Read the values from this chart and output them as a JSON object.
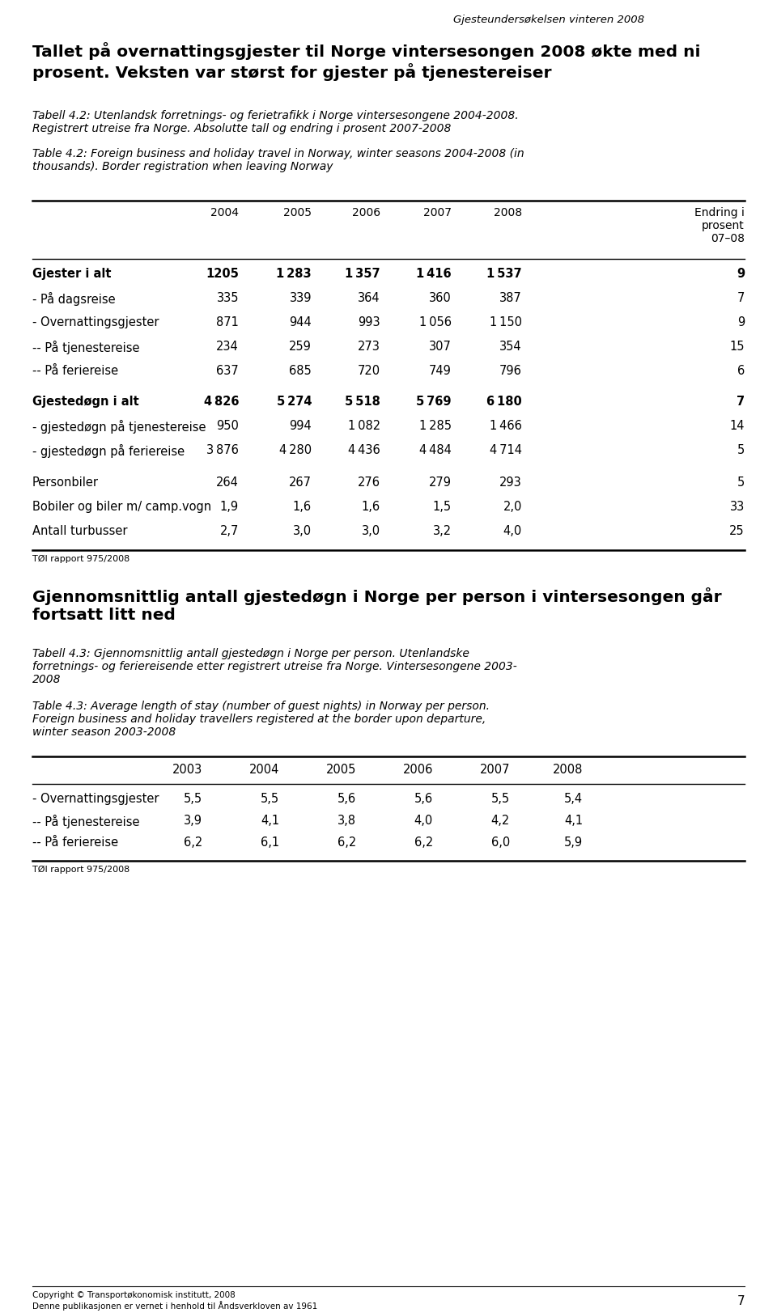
{
  "header_right": "Gjesteundersøkelsen vinteren 2008",
  "section1_title": "Tallet på overnattingsgjester til Norge vintersesongen 2008 økte med ni\nprosent. Veksten var størst for gjester på tjenestereiser",
  "section1_subtitle_no": "Tabell 4.2: Utenlandsk forretnings- og ferietrafikk i Norge vintersesongene 2004-2008.\nRegistrert utreise fra Norge. Absolutte tall og endring i prosent 2007-2008",
  "section1_subtitle_en": "Table 4.2: Foreign business and holiday travel in Norway, winter seasons 2004-2008 (in\nthousands). Border registration when leaving Norway",
  "table1_header": [
    "",
    "2004",
    "2005",
    "2006",
    "2007",
    "2008",
    "Endring i\nprosent\n07–08"
  ],
  "table1_rows": [
    [
      "Gjester i alt",
      "1205",
      "1 283",
      "1 357",
      "1 416",
      "1 537",
      "9"
    ],
    [
      "- På dagsreise",
      "335",
      "339",
      "364",
      "360",
      "387",
      "7"
    ],
    [
      "- Overnattingsgjester",
      "871",
      "944",
      "993",
      "1 056",
      "1 150",
      "9"
    ],
    [
      "-- På tjenestereise",
      "234",
      "259",
      "273",
      "307",
      "354",
      "15"
    ],
    [
      "-- På feriereise",
      "637",
      "685",
      "720",
      "749",
      "796",
      "6"
    ],
    [
      "Gjestedøgn i alt",
      "4 826",
      "5 274",
      "5 518",
      "5 769",
      "6 180",
      "7"
    ],
    [
      "- gjestedøgn på tjenestereise",
      "950",
      "994",
      "1 082",
      "1 285",
      "1 466",
      "14"
    ],
    [
      "- gjestedøgn på feriereise",
      "3 876",
      "4 280",
      "4 436",
      "4 484",
      "4 714",
      "5"
    ],
    [
      "Personbiler",
      "264",
      "267",
      "276",
      "279",
      "293",
      "5"
    ],
    [
      "Bobiler og biler m/ camp.vogn",
      "1,9",
      "1,6",
      "1,6",
      "1,5",
      "2,0",
      "33"
    ],
    [
      "Antall turbusser",
      "2,7",
      "3,0",
      "3,0",
      "3,2",
      "4,0",
      "25"
    ]
  ],
  "table1_bold_rows": [
    0,
    5
  ],
  "table1_source": "TØI rapport 975/2008",
  "section2_title": "Gjennomsnittlig antall gjestedøgn i Norge per person i vintersesongen går\nfortsatt litt ned",
  "section2_subtitle_no": "Tabell 4.3: Gjennomsnittlig antall gjestedøgn i Norge per person. Utenlandske\nforretnings- og feriereisende etter registrert utreise fra Norge. Vintersesongene 2003-\n2008",
  "section2_subtitle_en": "Table 4.3: Average length of stay (number of guest nights) in Norway per person.\nForeign business and holiday travellers registered at the border upon departure,\nwinter season 2003-2008",
  "table2_header": [
    "",
    "2003",
    "2004",
    "2005",
    "2006",
    "2007",
    "2008"
  ],
  "table2_rows": [
    [
      "- Overnattingsgjester",
      "5,5",
      "5,5",
      "5,6",
      "5,6",
      "5,5",
      "5,4"
    ],
    [
      "-- På tjenestereise",
      "3,9",
      "4,1",
      "3,8",
      "4,0",
      "4,2",
      "4,1"
    ],
    [
      "-- På feriereise",
      "6,2",
      "6,1",
      "6,2",
      "6,2",
      "6,0",
      "5,9"
    ]
  ],
  "table2_source": "TØI rapport 975/2008",
  "footer_copyright": "Copyright © Transportøkonomisk institutt, 2008\nDenne publikasjonen er vernet i henhold til Åndsverkloven av 1961",
  "footer_page": "7"
}
